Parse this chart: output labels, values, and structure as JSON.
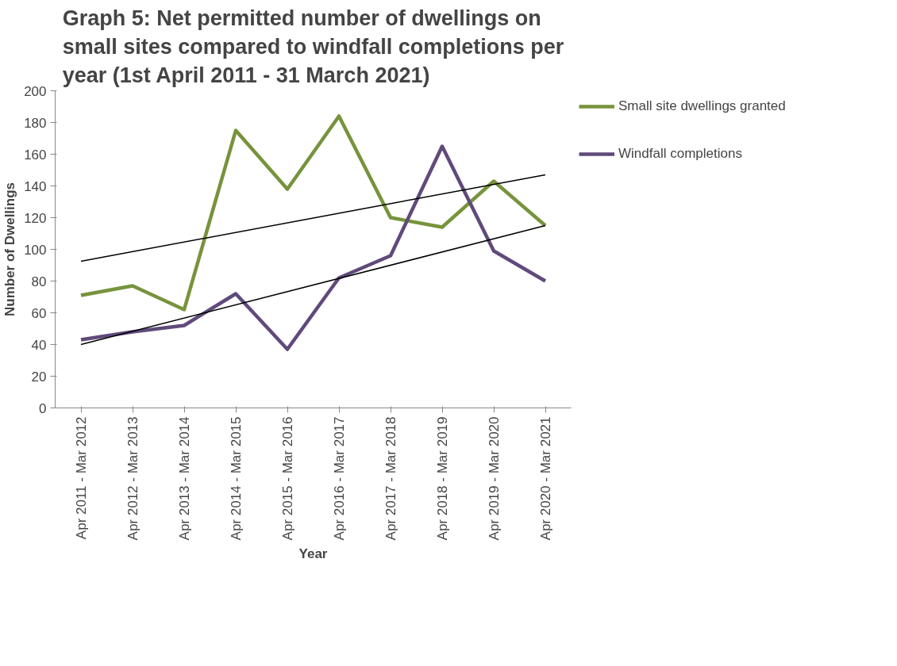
{
  "chart_data": {
    "type": "line",
    "title": "Graph 5: Net permitted number of dwellings on small sites compared to windfall completions per year (1st April 2011 - 31 March 2021)",
    "xlabel": "Year",
    "ylabel": "Number of Dwellings",
    "categories": [
      "Apr 2011 - Mar 2012",
      "Apr 2012 - Mar 2013",
      "Apr 2013 - Mar 2014",
      "Apr 2014 - Mar 2015",
      "Apr 2015 - Mar 2016",
      "Apr 2016 - Mar 2017",
      "Apr 2017 - Mar 2018",
      "Apr 2018 - Mar 2019",
      "Apr 2019 - Mar 2020",
      "Apr 2020 - Mar 2021"
    ],
    "series": [
      {
        "name": "Small site dwellings granted",
        "color": "#77933c",
        "values": [
          71,
          77,
          62,
          175,
          138,
          184,
          120,
          114,
          143,
          115
        ]
      },
      {
        "name": "Windfall completions",
        "color": "#604a7b",
        "values": [
          43,
          48,
          52,
          72,
          37,
          82,
          96,
          165,
          99,
          80
        ]
      },
      {
        "type": "line",
        "color": "#000000",
        "x": [
          "Apr 2011 - Mar 2012",
          "Apr 2020 - Mar 2021"
        ],
        "values": [
          92.5,
          147
        ]
      },
      {
        "type": "line",
        "color": "#000000",
        "x": [
          "Apr 2011 - Mar 2012",
          "Apr 2020 - Mar 2021"
        ],
        "values": [
          40,
          115
        ]
      }
    ],
    "ylim": [
      0,
      200
    ],
    "yticks": [
      0,
      20,
      40,
      60,
      80,
      100,
      120,
      140,
      160,
      180,
      200
    ],
    "grid": false,
    "legend": "right",
    "marker": "none",
    "line_style": "solid"
  }
}
